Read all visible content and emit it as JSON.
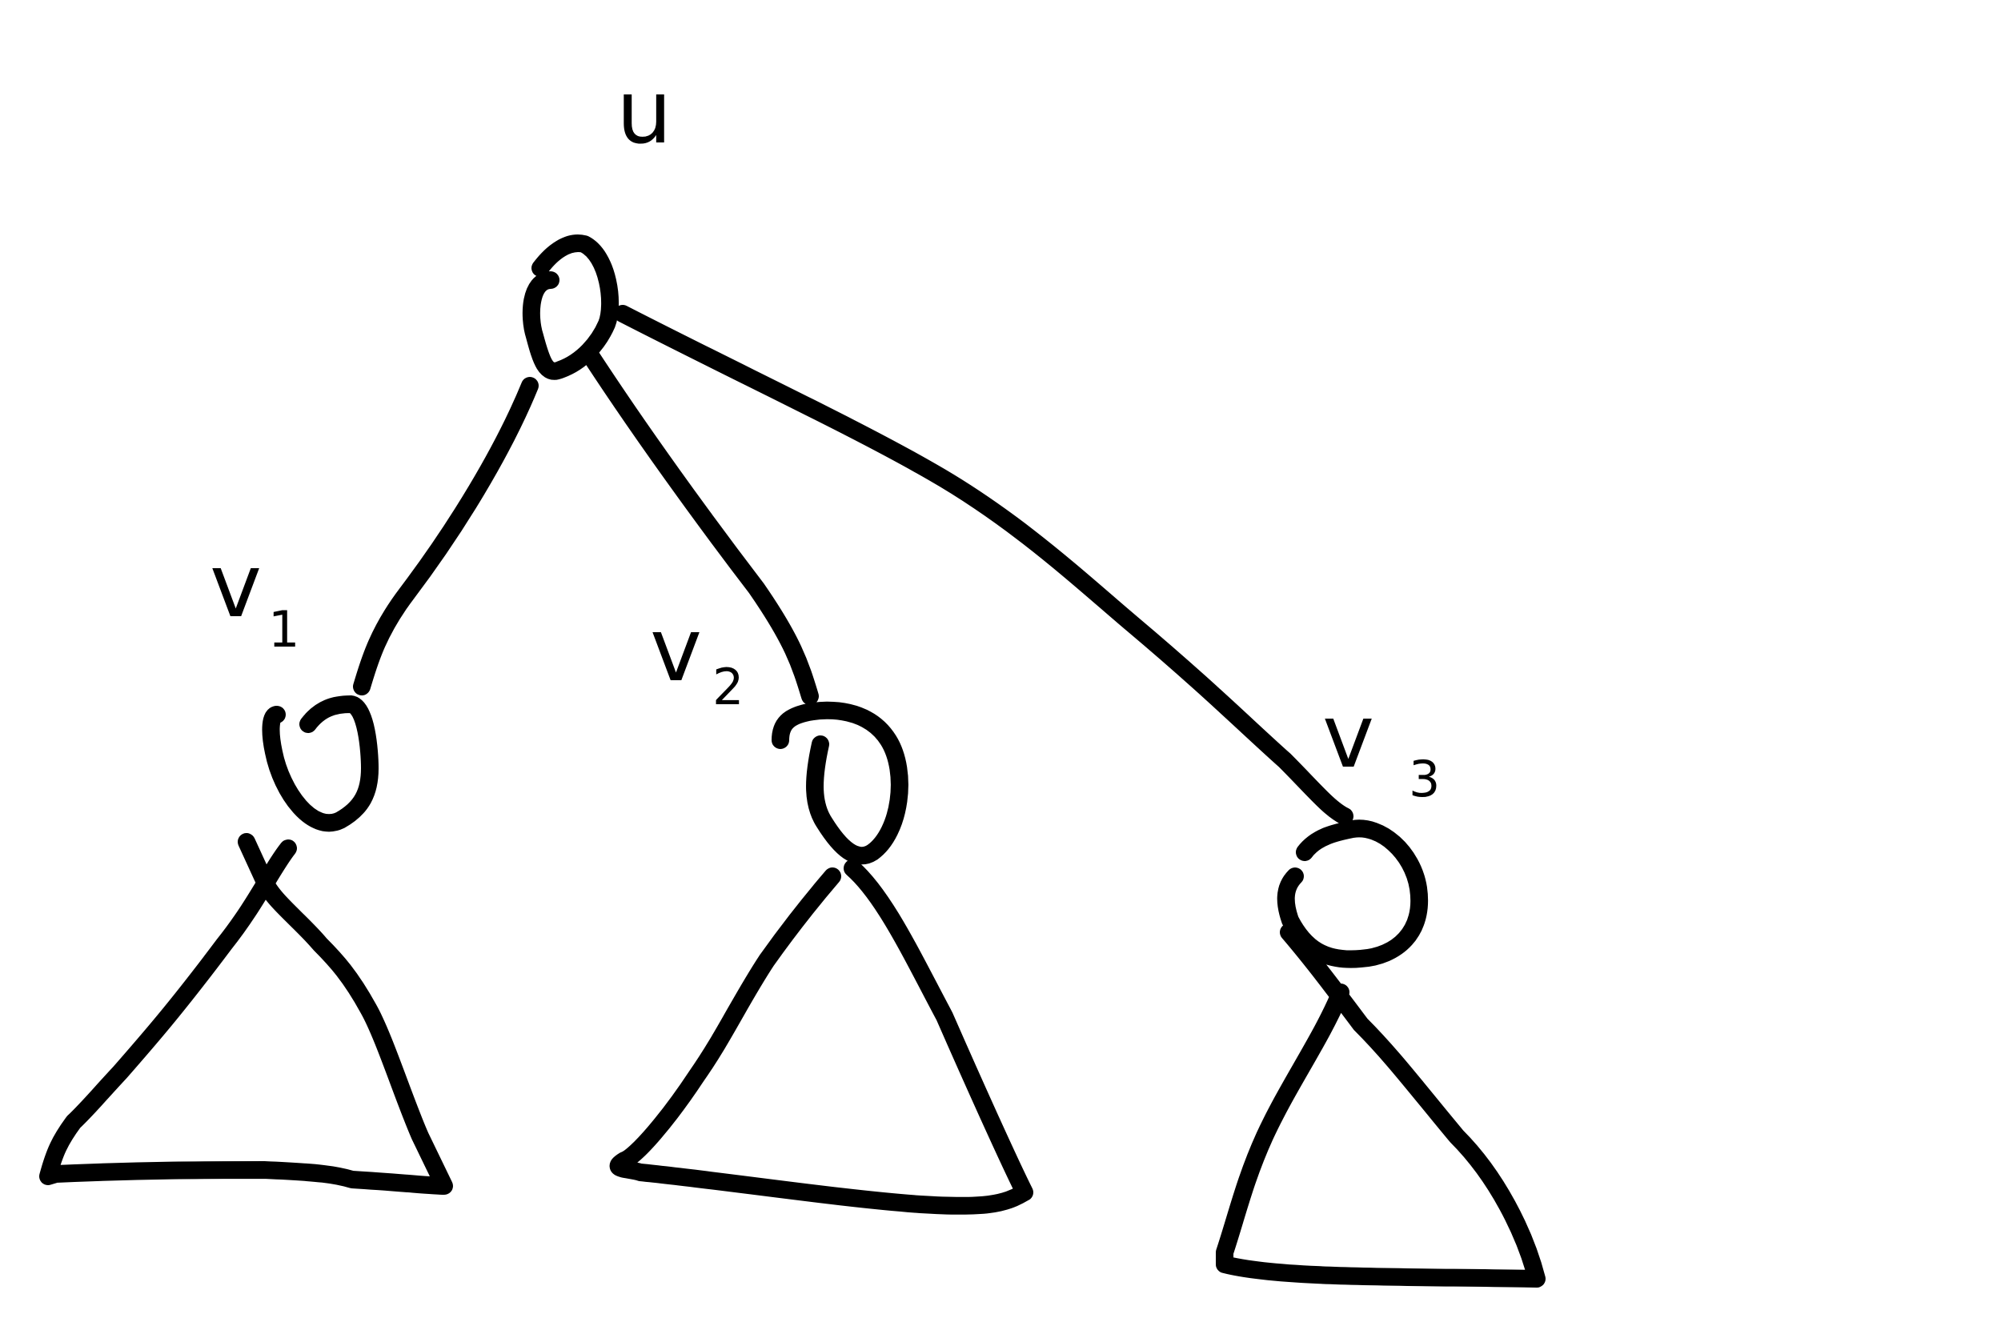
{
  "diagram": {
    "root": {
      "label": "u"
    },
    "children": [
      {
        "name": "v",
        "sub": "1"
      },
      {
        "name": "v",
        "sub": "2"
      },
      {
        "name": "v",
        "sub": "3"
      }
    ]
  },
  "colors": {
    "ink": "#000000",
    "background": "#ffffff"
  }
}
